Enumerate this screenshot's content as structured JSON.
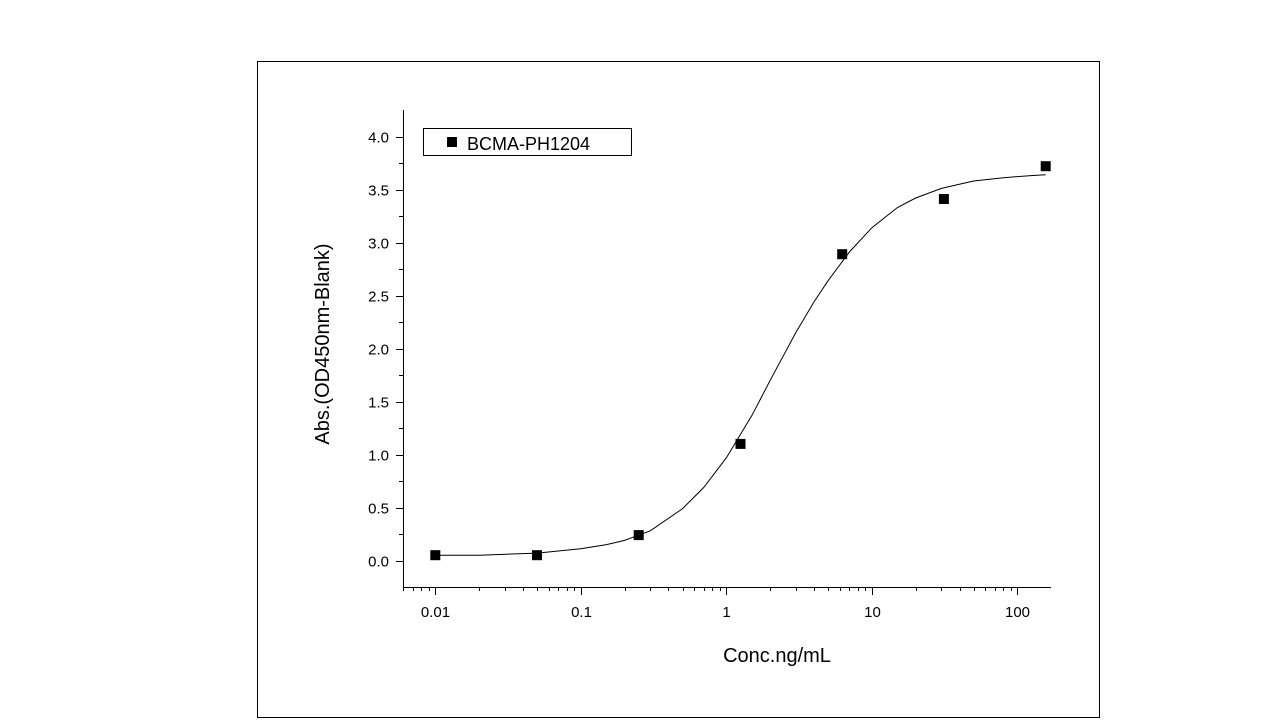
{
  "chart_data": {
    "type": "scatter",
    "title": "",
    "xlabel": "Conc.ng/mL",
    "ylabel": "Abs.(OD450nm-Blank)",
    "x_scale": "log",
    "xlim": [
      0.006,
      170
    ],
    "ylim": [
      -0.25,
      4.25
    ],
    "x_ticks": [
      0.01,
      0.1,
      1,
      10,
      100
    ],
    "x_tick_labels": [
      "0.01",
      "0.1",
      "1",
      "10",
      "100"
    ],
    "y_ticks": [
      0.0,
      0.5,
      1.0,
      1.5,
      2.0,
      2.5,
      3.0,
      3.5,
      4.0
    ],
    "y_tick_labels": [
      "0.0",
      "0.5",
      "1.0",
      "1.5",
      "2.0",
      "2.5",
      "3.0",
      "3.5",
      "4.0"
    ],
    "grid": false,
    "legend_position": "top-left",
    "series": [
      {
        "name": "BCMA-PH1204",
        "marker": "square",
        "color": "#000000",
        "x": [
          0.01,
          0.05,
          0.25,
          1.25,
          6.25,
          31.25,
          156.25
        ],
        "y": [
          0.05,
          0.05,
          0.24,
          1.1,
          2.89,
          3.41,
          3.72
        ]
      }
    ],
    "fit_curve": {
      "type": "4PL logistic",
      "color": "#000000",
      "x": [
        0.01,
        0.02,
        0.05,
        0.1,
        0.15,
        0.2,
        0.3,
        0.5,
        0.7,
        1.0,
        1.5,
        2.0,
        3.0,
        4.0,
        5.0,
        7.0,
        10,
        15,
        20,
        30,
        50,
        80,
        120,
        156.25
      ],
      "y": [
        0.05,
        0.05,
        0.07,
        0.11,
        0.15,
        0.19,
        0.28,
        0.49,
        0.69,
        0.97,
        1.37,
        1.7,
        2.15,
        2.44,
        2.64,
        2.91,
        3.14,
        3.33,
        3.42,
        3.51,
        3.58,
        3.61,
        3.63,
        3.64
      ]
    }
  }
}
